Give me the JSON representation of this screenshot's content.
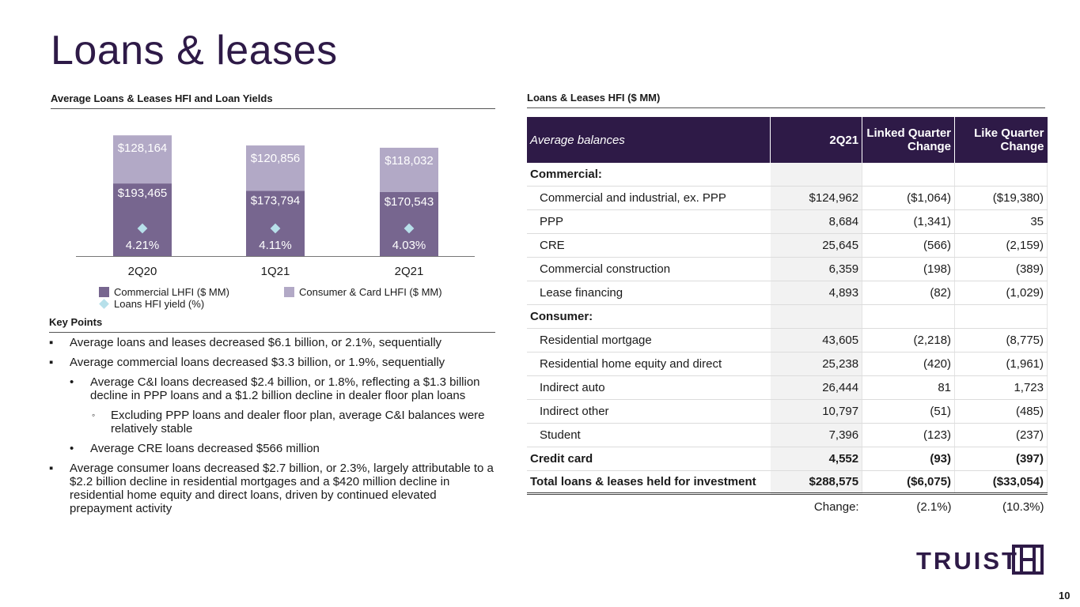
{
  "title": "Loans & leases",
  "chart_header": "Average Loans & Leases HFI and Loan Yields",
  "table_header": "Loans & Leases HFI ($ MM)",
  "key_points_header": "Key Points",
  "colors": {
    "brand_purple": "#2e1a47",
    "commercial": "#77668f",
    "consumer": "#b2a9c6",
    "yield_marker": "#b7e0ea"
  },
  "chart_data": {
    "type": "bar",
    "stacked": true,
    "categories": [
      "2Q20",
      "1Q21",
      "2Q21"
    ],
    "series": [
      {
        "name": "Commercial LHFI ($ MM)",
        "values": [
          193465,
          173794,
          170543
        ],
        "labels": [
          "$193,465",
          "$173,794",
          "$170,543"
        ]
      },
      {
        "name": "Consumer & Card LHFI ($ MM)",
        "values": [
          128164,
          120856,
          118032
        ],
        "labels": [
          "$128,164",
          "$120,856",
          "$118,032"
        ]
      },
      {
        "name": "Loans HFI yield (%)",
        "type": "scatter",
        "values": [
          4.21,
          4.11,
          4.03
        ],
        "labels": [
          "4.21%",
          "4.11%",
          "4.03%"
        ]
      }
    ],
    "legend": [
      "Commercial LHFI ($ MM)",
      "Consumer & Card LHFI ($ MM)",
      "Loans HFI yield (%)"
    ],
    "legend_position": "bottom",
    "grid": false
  },
  "table": {
    "columns": [
      "Average balances",
      "2Q21",
      "Linked Quarter Change",
      "Like Quarter Change"
    ],
    "rows": [
      {
        "kind": "section",
        "label": "Commercial:",
        "q": "",
        "lq": "",
        "yq": ""
      },
      {
        "kind": "item",
        "label": "Commercial and industrial, ex. PPP",
        "q": "$124,962",
        "lq": "($1,064)",
        "yq": "($19,380)"
      },
      {
        "kind": "item",
        "label": "PPP",
        "q": "8,684",
        "lq": "(1,341)",
        "yq": "35"
      },
      {
        "kind": "item",
        "label": "CRE",
        "q": "25,645",
        "lq": "(566)",
        "yq": "(2,159)"
      },
      {
        "kind": "item",
        "label": "Commercial construction",
        "q": "6,359",
        "lq": "(198)",
        "yq": "(389)"
      },
      {
        "kind": "item",
        "label": "Lease financing",
        "q": "4,893",
        "lq": "(82)",
        "yq": "(1,029)"
      },
      {
        "kind": "section",
        "label": "Consumer:",
        "q": "",
        "lq": "",
        "yq": ""
      },
      {
        "kind": "item",
        "label": "Residential mortgage",
        "q": "43,605",
        "lq": "(2,218)",
        "yq": "(8,775)"
      },
      {
        "kind": "item",
        "label": "Residential home equity and direct",
        "q": "25,238",
        "lq": "(420)",
        "yq": "(1,961)"
      },
      {
        "kind": "item",
        "label": "Indirect auto",
        "q": "26,444",
        "lq": "81",
        "yq": "1,723"
      },
      {
        "kind": "item",
        "label": "Indirect other",
        "q": "10,797",
        "lq": "(51)",
        "yq": "(485)"
      },
      {
        "kind": "item",
        "label": "Student",
        "q": "7,396",
        "lq": "(123)",
        "yq": "(237)"
      },
      {
        "kind": "section",
        "label": "Credit card",
        "q": "4,552",
        "lq": "(93)",
        "yq": "(397)"
      },
      {
        "kind": "total",
        "label": "Total loans & leases held for investment",
        "q": "$288,575",
        "lq": "($6,075)",
        "yq": "($33,054)"
      }
    ],
    "change": {
      "label": "Change:",
      "lq": "(2.1%)",
      "yq": "(10.3%)"
    }
  },
  "key_points": [
    {
      "level": 1,
      "marker": "▪",
      "text": "Average loans and leases decreased $6.1 billion, or 2.1%, sequentially"
    },
    {
      "level": 1,
      "marker": "▪",
      "text": "Average commercial loans decreased $3.3 billion, or 1.9%, sequentially"
    },
    {
      "level": 2,
      "marker": "•",
      "text": "Average C&I loans decreased $2.4 billion, or 1.8%, reflecting a $1.3 billion decline in PPP loans and a $1.2 billion decline in dealer floor plan loans"
    },
    {
      "level": 3,
      "marker": "◦",
      "text": "Excluding PPP loans and dealer floor plan, average C&I balances were relatively stable"
    },
    {
      "level": 2,
      "marker": "•",
      "text": "Average CRE loans decreased $566 million"
    },
    {
      "level": 1,
      "marker": "▪",
      "text": "Average consumer loans decreased $2.7 billion, or 2.3%, largely attributable to a $2.2 billion decline in residential mortgages and a $420 million decline in residential home equity and direct loans, driven by continued elevated prepayment activity"
    }
  ],
  "logo": {
    "text": "TRUIST",
    "icon": "truist-hh-logo-icon"
  },
  "page_number": "10"
}
